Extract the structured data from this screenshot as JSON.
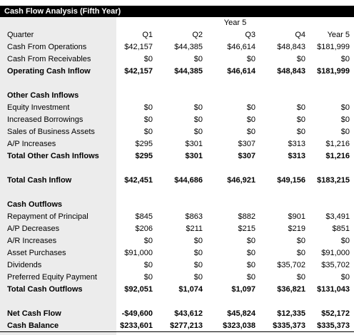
{
  "title": "Cash Flow Analysis (Fifth Year)",
  "year_header": "Year 5",
  "header": {
    "label": "Quarter",
    "cols": [
      "Q1",
      "Q2",
      "Q3",
      "Q4",
      "Year 5"
    ]
  },
  "rows": [
    {
      "key": "cash-from-operations",
      "label": "Cash From Operations",
      "bold": false,
      "v": [
        "$42,157",
        "$44,385",
        "$46,614",
        "$48,843",
        "$181,999"
      ]
    },
    {
      "key": "cash-from-receivables",
      "label": "Cash From Receivables",
      "bold": false,
      "v": [
        "$0",
        "$0",
        "$0",
        "$0",
        "$0"
      ]
    },
    {
      "key": "operating-cash-inflow",
      "label": "Operating Cash Inflow",
      "bold": true,
      "v": [
        "$42,157",
        "$44,385",
        "$46,614",
        "$48,843",
        "$181,999"
      ]
    },
    {
      "key": "spacer-1",
      "label": "",
      "bold": false,
      "v": [
        "",
        "",
        "",
        "",
        ""
      ]
    },
    {
      "key": "other-cash-inflows",
      "label": "Other Cash Inflows",
      "bold": true,
      "v": [
        "",
        "",
        "",
        "",
        ""
      ]
    },
    {
      "key": "equity-investment",
      "label": "Equity Investment",
      "bold": false,
      "v": [
        "$0",
        "$0",
        "$0",
        "$0",
        "$0"
      ]
    },
    {
      "key": "increased-borrowings",
      "label": "Increased Borrowings",
      "bold": false,
      "v": [
        "$0",
        "$0",
        "$0",
        "$0",
        "$0"
      ]
    },
    {
      "key": "sales-of-business-assets",
      "label": "Sales of Business Assets",
      "bold": false,
      "v": [
        "$0",
        "$0",
        "$0",
        "$0",
        "$0"
      ]
    },
    {
      "key": "ap-increases",
      "label": "A/P Increases",
      "bold": false,
      "v": [
        "$295",
        "$301",
        "$307",
        "$313",
        "$1,216"
      ]
    },
    {
      "key": "total-other-cash-inflows",
      "label": "Total Other Cash Inflows",
      "bold": true,
      "v": [
        "$295",
        "$301",
        "$307",
        "$313",
        "$1,216"
      ]
    },
    {
      "key": "spacer-2",
      "label": "",
      "bold": false,
      "v": [
        "",
        "",
        "",
        "",
        ""
      ]
    },
    {
      "key": "total-cash-inflow",
      "label": "Total Cash Inflow",
      "bold": true,
      "v": [
        "$42,451",
        "$44,686",
        "$46,921",
        "$49,156",
        "$183,215"
      ]
    },
    {
      "key": "spacer-3",
      "label": "",
      "bold": false,
      "v": [
        "",
        "",
        "",
        "",
        ""
      ]
    },
    {
      "key": "cash-outflows",
      "label": "Cash Outflows",
      "bold": true,
      "v": [
        "",
        "",
        "",
        "",
        ""
      ]
    },
    {
      "key": "repayment-of-principal",
      "label": "Repayment of Principal",
      "bold": false,
      "v": [
        "$845",
        "$863",
        "$882",
        "$901",
        "$3,491"
      ]
    },
    {
      "key": "ap-decreases",
      "label": "A/P Decreases",
      "bold": false,
      "v": [
        "$206",
        "$211",
        "$215",
        "$219",
        "$851"
      ]
    },
    {
      "key": "ar-increases",
      "label": "A/R Increases",
      "bold": false,
      "v": [
        "$0",
        "$0",
        "$0",
        "$0",
        "$0"
      ]
    },
    {
      "key": "asset-purchases",
      "label": "Asset Purchases",
      "bold": false,
      "v": [
        "$91,000",
        "$0",
        "$0",
        "$0",
        "$91,000"
      ]
    },
    {
      "key": "dividends",
      "label": "Dividends",
      "bold": false,
      "v": [
        "$0",
        "$0",
        "$0",
        "$35,702",
        "$35,702"
      ]
    },
    {
      "key": "preferred-equity-payment",
      "label": "Preferred Equity Payment",
      "bold": false,
      "v": [
        "$0",
        "$0",
        "$0",
        "$0",
        "$0"
      ]
    },
    {
      "key": "total-cash-outflows",
      "label": "Total Cash Outflows",
      "bold": true,
      "v": [
        "$92,051",
        "$1,074",
        "$1,097",
        "$36,821",
        "$131,043"
      ]
    },
    {
      "key": "spacer-4",
      "label": "",
      "bold": false,
      "v": [
        "",
        "",
        "",
        "",
        ""
      ]
    },
    {
      "key": "net-cash-flow",
      "label": "Net Cash Flow",
      "bold": true,
      "v": [
        "-$49,600",
        "$43,612",
        "$45,824",
        "$12,335",
        "$52,172"
      ]
    },
    {
      "key": "cash-balance",
      "label": "Cash Balance",
      "bold": true,
      "v": [
        "$233,601",
        "$277,213",
        "$323,038",
        "$335,373",
        "$335,373"
      ]
    }
  ]
}
